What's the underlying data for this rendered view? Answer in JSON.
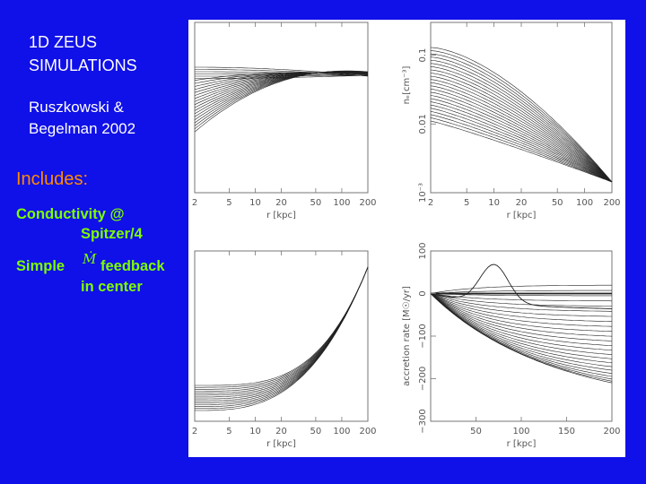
{
  "slide": {
    "title_line1": "1D ZEUS",
    "title_line2": "SIMULATIONS",
    "author_line1": "Ruszkowski &",
    "author_line2": "Begelman 2002",
    "includes": "Includes:",
    "conductivity_line1": "Conductivity @",
    "conductivity_line2": "Spitzer/4",
    "simple": "Simple",
    "mdot_symbol": "Ṁ",
    "feedback": "feedback",
    "feedback_line2": "in center"
  },
  "colors": {
    "background": "#1010e8",
    "title_text": "#ffffff",
    "includes_text": "#ff8a00",
    "body_text": "#7cff00"
  },
  "chart_data": [
    {
      "type": "line",
      "panel": "top-left",
      "x_scale": "log",
      "xlim": [
        2,
        200
      ],
      "xticks": [
        "2",
        "5",
        "10",
        "20",
        "50",
        "100",
        "200"
      ],
      "xlabel": "r [kpc]",
      "ylabel": "",
      "num_curves": 24
    },
    {
      "type": "line",
      "panel": "top-right",
      "x_scale": "log",
      "y_scale": "log",
      "xlim": [
        2,
        200
      ],
      "ylim": [
        0.001,
        0.3
      ],
      "xticks": [
        "2",
        "5",
        "10",
        "20",
        "50",
        "100",
        "200"
      ],
      "yticks": [
        "10⁻³",
        "0.01",
        "0.1"
      ],
      "xlabel": "r [kpc]",
      "ylabel": "nₑ[cm⁻³]",
      "num_curves": 24
    },
    {
      "type": "line",
      "panel": "bottom-left",
      "x_scale": "log",
      "xlim": [
        2,
        200
      ],
      "xticks": [
        "2",
        "5",
        "10",
        "20",
        "50",
        "100",
        "200"
      ],
      "xlabel": "r [kpc]",
      "ylabel": "",
      "num_curves": 14
    },
    {
      "type": "line",
      "panel": "bottom-right",
      "x_scale": "linear",
      "xlim": [
        0,
        200
      ],
      "ylim": [
        -300,
        100
      ],
      "xticks": [
        "50",
        "100",
        "150",
        "200"
      ],
      "yticks": [
        "−300",
        "−200",
        "−100",
        "0",
        "100"
      ],
      "xlabel": "r [kpc]",
      "ylabel": "accretion rate [M☉/yr]",
      "num_curves": 24,
      "peak": {
        "x": 70,
        "y": 90
      }
    }
  ]
}
